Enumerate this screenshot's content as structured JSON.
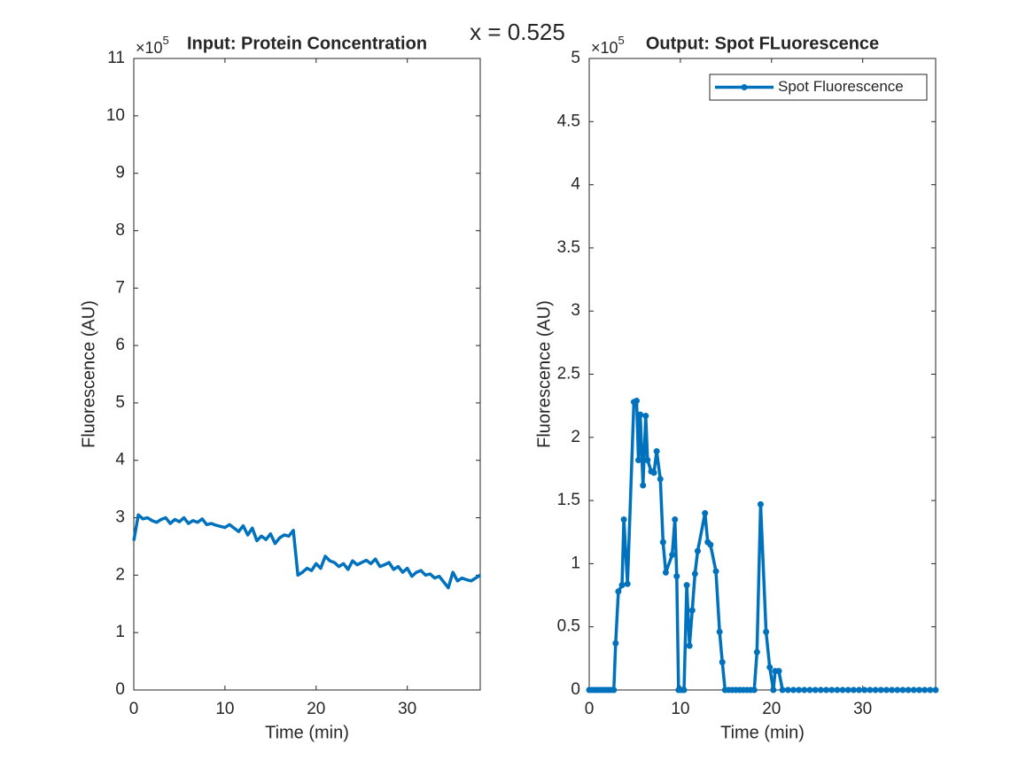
{
  "title": "x = 0.525",
  "chart_data": [
    {
      "type": "line",
      "title": "Input: Protein Concentration",
      "x_label": "Time (min)",
      "y_label": "Fluorescence (AU)",
      "y_exponent": {
        "base": "×10",
        "power": 5
      },
      "xlim": [
        0,
        38
      ],
      "xticks": [
        0,
        10,
        20,
        30
      ],
      "ylim": [
        0,
        11
      ],
      "yticks": [
        0,
        1,
        2,
        3,
        4,
        5,
        6,
        7,
        8,
        9,
        10,
        11
      ],
      "x": [
        0,
        0.5,
        1,
        1.5,
        2,
        2.5,
        3,
        3.5,
        4,
        4.5,
        5,
        5.5,
        6,
        6.5,
        7,
        7.5,
        8,
        8.5,
        9,
        9.5,
        10,
        10.5,
        11,
        11.5,
        12,
        12.5,
        13,
        13.5,
        14,
        14.5,
        15,
        15.5,
        16,
        16.5,
        17,
        17.5,
        18,
        18.5,
        19,
        19.5,
        20,
        20.5,
        21,
        21.5,
        22,
        22.5,
        23,
        23.5,
        24,
        24.5,
        25,
        25.5,
        26,
        26.5,
        27,
        27.5,
        28,
        28.5,
        29,
        29.5,
        30,
        30.5,
        31,
        31.5,
        32,
        32.5,
        33,
        33.5,
        34,
        34.5,
        35,
        35.5,
        36,
        36.5,
        37,
        37.5,
        38
      ],
      "series": [
        {
          "color": "#0072bd",
          "marker": "none",
          "values": [
            2.6,
            3.05,
            2.98,
            3.0,
            2.95,
            2.92,
            2.97,
            3.0,
            2.9,
            2.97,
            2.93,
            3.0,
            2.9,
            2.95,
            2.92,
            2.98,
            2.88,
            2.9,
            2.87,
            2.85,
            2.83,
            2.88,
            2.82,
            2.76,
            2.86,
            2.7,
            2.82,
            2.6,
            2.68,
            2.62,
            2.72,
            2.55,
            2.65,
            2.7,
            2.68,
            2.78,
            2.0,
            2.05,
            2.12,
            2.08,
            2.2,
            2.12,
            2.33,
            2.25,
            2.22,
            2.15,
            2.2,
            2.1,
            2.25,
            2.18,
            2.22,
            2.26,
            2.2,
            2.28,
            2.15,
            2.18,
            2.22,
            2.1,
            2.15,
            2.05,
            2.12,
            1.98,
            2.05,
            2.08,
            2.0,
            2.02,
            1.95,
            1.98,
            1.88,
            1.78,
            2.05,
            1.9,
            1.95,
            1.92,
            1.9,
            1.95,
            2.0
          ]
        }
      ]
    },
    {
      "type": "line",
      "title": "Output: Spot FLuorescence",
      "x_label": "Time (min)",
      "y_label": "Fluorescence (AU)",
      "y_exponent": {
        "base": "×10",
        "power": 5
      },
      "legend": "northeast",
      "xlim": [
        0,
        38
      ],
      "xticks": [
        0,
        10,
        20,
        30
      ],
      "ylim": [
        0,
        5
      ],
      "yticks": [
        0,
        0.5,
        1,
        1.5,
        2,
        2.5,
        3,
        3.5,
        4,
        4.5,
        5
      ],
      "x": [
        0,
        0.3,
        0.6,
        0.9,
        1.2,
        1.5,
        1.8,
        2.1,
        2.4,
        2.7,
        2.9,
        3.2,
        3.6,
        3.8,
        4.2,
        4.9,
        5.2,
        5.4,
        5.6,
        5.9,
        6.2,
        6.4,
        6.8,
        7.1,
        7.4,
        7.8,
        8.1,
        8.4,
        9.1,
        9.4,
        9.6,
        9.8,
        10.1,
        10.4,
        10.7,
        11.0,
        11.3,
        11.6,
        11.9,
        12.7,
        13.0,
        13.3,
        13.9,
        14.3,
        14.6,
        14.9,
        15.3,
        15.7,
        16.1,
        16.5,
        16.9,
        17.3,
        17.7,
        18.1,
        18.4,
        18.8,
        19.4,
        19.8,
        20.2,
        20.4,
        20.8,
        21.2,
        21.8,
        22.4,
        23.0,
        23.6,
        24.2,
        24.8,
        25.4,
        26.0,
        26.6,
        27.2,
        27.8,
        28.4,
        29.0,
        29.6,
        30.2,
        30.8,
        31.4,
        32.0,
        32.6,
        33.2,
        33.8,
        34.4,
        35.0,
        35.6,
        36.2,
        36.8,
        37.4,
        38.0
      ],
      "series": [
        {
          "name": "Spot Fluorescence",
          "color": "#0072bd",
          "marker": "o",
          "values": [
            0,
            0,
            0,
            0,
            0,
            0,
            0,
            0,
            0,
            0,
            0.37,
            0.78,
            0.83,
            1.35,
            0.84,
            2.28,
            2.29,
            1.82,
            2.18,
            1.62,
            2.17,
            1.82,
            1.73,
            1.72,
            1.89,
            1.67,
            1.17,
            0.93,
            1.07,
            1.35,
            0.9,
            0,
            0,
            0,
            0.83,
            0.35,
            0.63,
            0.92,
            1.1,
            1.4,
            1.17,
            1.15,
            0.94,
            0.46,
            0.22,
            0,
            0,
            0,
            0,
            0,
            0,
            0,
            0,
            0,
            0.3,
            1.47,
            0.46,
            0.18,
            0,
            0.15,
            0.15,
            0,
            0,
            0,
            0,
            0,
            0,
            0,
            0,
            0,
            0,
            0,
            0,
            0,
            0,
            0,
            0,
            0,
            0,
            0,
            0,
            0,
            0,
            0,
            0,
            0,
            0,
            0,
            0,
            0
          ]
        }
      ]
    }
  ]
}
